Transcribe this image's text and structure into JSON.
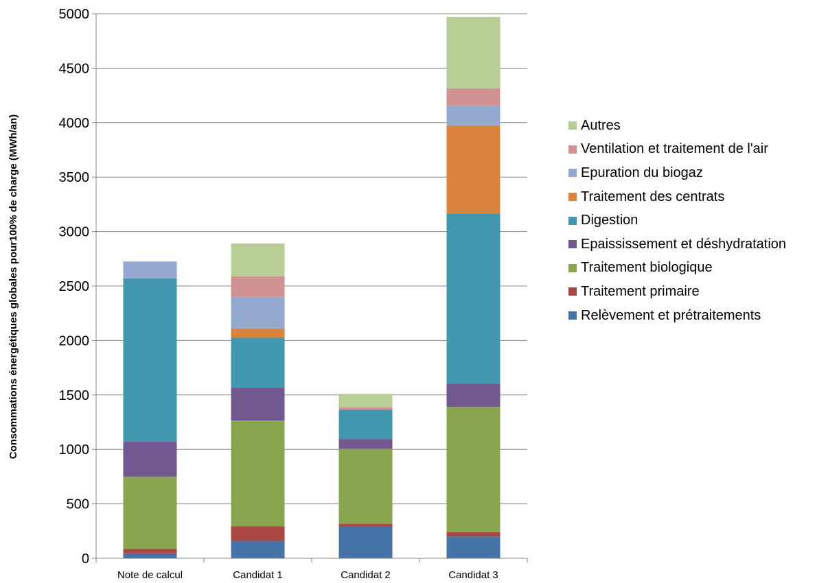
{
  "chart_data": {
    "type": "bar",
    "stacked": true,
    "title": "",
    "xlabel": "",
    "ylabel": "Consommations énergétiques globales pour100% de charge (MWh/an)",
    "ylim": [
      0,
      5000
    ],
    "yticks": [
      0,
      500,
      1000,
      1500,
      2000,
      2500,
      3000,
      3500,
      4000,
      4500,
      5000
    ],
    "grid": true,
    "legend_position": "right",
    "categories": [
      "Note de calcul",
      "Candidat 1",
      "Candidat 2",
      "Candidat 3"
    ],
    "series": [
      {
        "name": "Relèvement et prétraitements",
        "color": "#4572A7",
        "values": [
          45,
          160,
          290,
          200
        ]
      },
      {
        "name": "Traitement primaire",
        "color": "#AA4643",
        "values": [
          40,
          135,
          25,
          40
        ]
      },
      {
        "name": "Traitement biologique",
        "color": "#89A54E",
        "values": [
          665,
          970,
          690,
          1150
        ]
      },
      {
        "name": "Epaississement et déshydratation",
        "color": "#71588F",
        "values": [
          320,
          300,
          90,
          215
        ]
      },
      {
        "name": "Digestion",
        "color": "#4198AF",
        "values": [
          1500,
          460,
          270,
          1560
        ]
      },
      {
        "name": "Traitement des centrats",
        "color": "#DB843D",
        "values": [
          0,
          85,
          0,
          810
        ]
      },
      {
        "name": "Epuration du biogaz",
        "color": "#93A9CF",
        "values": [
          155,
          290,
          0,
          180
        ]
      },
      {
        "name": "Ventilation et traitement de l'air",
        "color": "#D19392",
        "values": [
          0,
          190,
          20,
          160
        ]
      },
      {
        "name": "Autres",
        "color": "#B9CD96",
        "values": [
          0,
          300,
          125,
          655
        ]
      }
    ]
  }
}
